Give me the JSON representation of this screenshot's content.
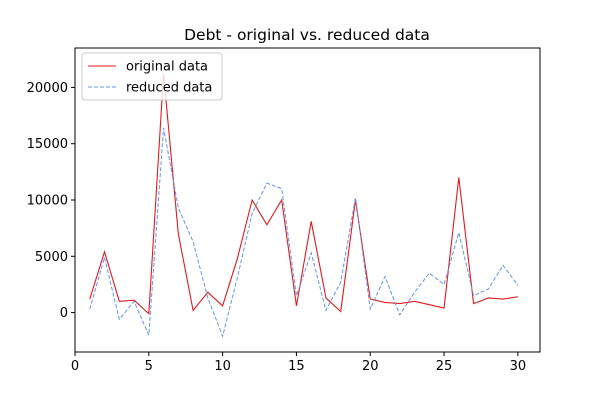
{
  "chart_data": {
    "type": "line",
    "title": "Debt - original vs. reduced data",
    "xlabel": "",
    "ylabel": "",
    "x": [
      1,
      2,
      3,
      4,
      5,
      6,
      7,
      8,
      9,
      10,
      11,
      12,
      13,
      14,
      15,
      16,
      17,
      18,
      19,
      20,
      21,
      22,
      23,
      24,
      25,
      26,
      27,
      28,
      29,
      30
    ],
    "xlim": [
      0,
      31.5
    ],
    "ylim": [
      -3500,
      23500
    ],
    "xticks": [
      0,
      5,
      10,
      15,
      20,
      25,
      30
    ],
    "yticks": [
      0,
      5000,
      10000,
      15000,
      20000
    ],
    "grid": false,
    "legend_position": "upper-left",
    "series": [
      {
        "name": "original data",
        "color": "#e41a1c",
        "line_style": "solid",
        "values": [
          1200,
          5400,
          1000,
          1100,
          -100,
          21200,
          7000,
          200,
          1800,
          600,
          4800,
          10000,
          7800,
          10000,
          600,
          8100,
          1300,
          100,
          10000,
          1200,
          900,
          800,
          1000,
          700,
          400,
          12000,
          800,
          1300,
          1200,
          1400
        ]
      },
      {
        "name": "reduced data",
        "color": "#6495ed",
        "line_style": "dashed",
        "values": [
          300,
          4900,
          -600,
          1000,
          -2000,
          16400,
          9300,
          6300,
          1300,
          -2100,
          3100,
          8800,
          11500,
          11000,
          1500,
          5300,
          200,
          2700,
          10200,
          300,
          3200,
          -200,
          1800,
          3500,
          2500,
          7100,
          1500,
          2100,
          4200,
          2400
        ]
      }
    ]
  }
}
